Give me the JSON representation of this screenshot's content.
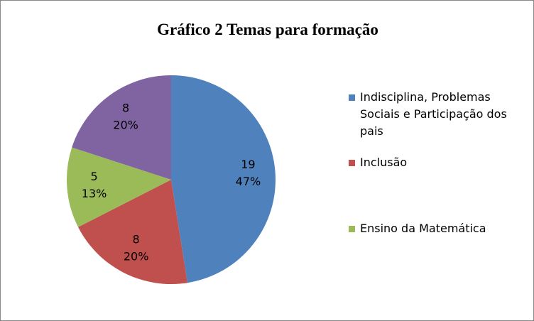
{
  "chart_data": {
    "type": "pie",
    "title": "Gráfico 2 Temas para formação",
    "categories": [
      "Indisciplina, Problemas Sociais e Participação dos pais",
      "Inclusão",
      "Ensino da Matemática",
      null
    ],
    "values": [
      19,
      8,
      5,
      8
    ],
    "percent_labels": [
      "47%",
      "20%",
      "13%",
      "20%"
    ],
    "colors": [
      "#4f81bd",
      "#c0504d",
      "#9bbb59",
      "#8064a2"
    ],
    "legend": "right"
  }
}
